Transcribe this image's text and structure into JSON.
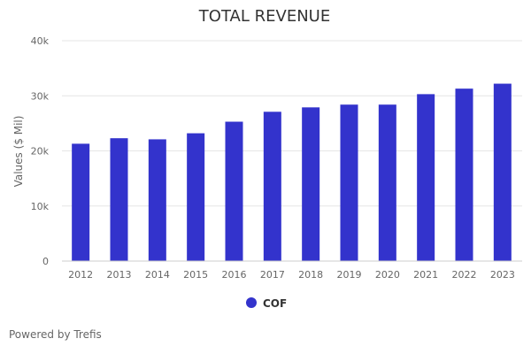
{
  "chart_data": {
    "type": "bar",
    "title": "TOTAL REVENUE",
    "ylabel": "Values ($ Mil)",
    "xlabel": "",
    "categories": [
      "2012",
      "2013",
      "2014",
      "2015",
      "2016",
      "2017",
      "2018",
      "2019",
      "2020",
      "2021",
      "2022",
      "2023"
    ],
    "series": [
      {
        "name": "COF",
        "color": "#3333cc",
        "values": [
          21300,
          22300,
          22100,
          23200,
          25300,
          27100,
          27900,
          28400,
          28400,
          30300,
          31300,
          32200
        ]
      }
    ],
    "ylim": [
      0,
      40000
    ],
    "yticks": [
      {
        "value": 0,
        "label": "0"
      },
      {
        "value": 10000,
        "label": "10k"
      },
      {
        "value": 20000,
        "label": "20k"
      },
      {
        "value": 30000,
        "label": "30k"
      },
      {
        "value": 40000,
        "label": "40k"
      }
    ],
    "grid": true,
    "legend_position": "bottom-center"
  },
  "footer": {
    "credit": "Powered by Trefis"
  }
}
